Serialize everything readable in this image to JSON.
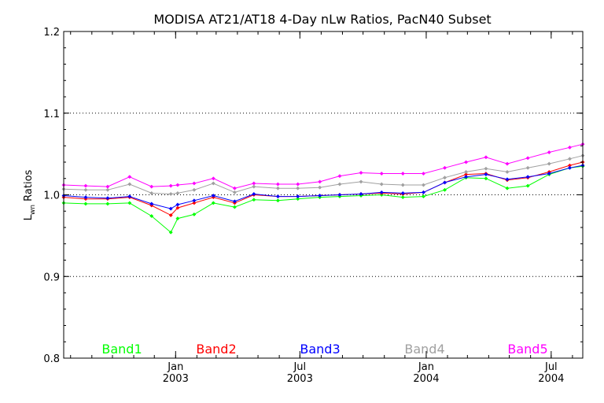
{
  "chart_data": {
    "type": "line",
    "title": "MODISA AT21/AT18 4-Day nLw Ratios, PacN40 Subset",
    "ylabel_main": "L",
    "ylabel_sub": "wn",
    "ylabel_rest": " Ratios",
    "xlabel": "",
    "xlim": [
      "2002-07-22",
      "2004-08-16"
    ],
    "ylim": [
      0.8,
      1.2
    ],
    "yticks": [
      "0.8",
      "0.9",
      "1.0",
      "1.1",
      "1.2"
    ],
    "ytick_values": [
      0.8,
      0.9,
      1.0,
      1.1,
      1.2
    ],
    "ygrid": [
      0.9,
      1.0,
      1.1
    ],
    "xticks": [
      {
        "date": "2003-01-01",
        "month": "Jan",
        "year": "2003"
      },
      {
        "date": "2003-07-01",
        "month": "Jul",
        "year": "2003"
      },
      {
        "date": "2004-01-01",
        "month": "Jan",
        "year": "2004"
      },
      {
        "date": "2004-07-01",
        "month": "Jul",
        "year": "2004"
      }
    ],
    "x": [
      "2002-07-22",
      "2002-08-23",
      "2002-09-24",
      "2002-10-26",
      "2002-11-27",
      "2002-12-25",
      "2003-01-04",
      "2003-01-28",
      "2003-02-25",
      "2003-03-28",
      "2003-04-25",
      "2003-05-30",
      "2003-06-28",
      "2003-07-30",
      "2003-08-28",
      "2003-09-28",
      "2003-10-28",
      "2003-11-28",
      "2003-12-28",
      "2004-01-28",
      "2004-02-28",
      "2004-03-28",
      "2004-04-28",
      "2004-05-28",
      "2004-06-28",
      "2004-07-28",
      "2004-08-16"
    ],
    "series": [
      {
        "name": "Band1",
        "color": "#00ff00",
        "values": [
          0.99,
          0.989,
          0.989,
          0.99,
          0.974,
          0.954,
          0.971,
          0.976,
          0.99,
          0.985,
          0.994,
          0.993,
          0.995,
          0.997,
          0.998,
          0.999,
          1.0,
          0.997,
          0.998,
          1.006,
          1.021,
          1.02,
          1.008,
          1.011,
          1.025,
          1.033,
          1.035
        ]
      },
      {
        "name": "Band2",
        "color": "#ff0000",
        "values": [
          0.997,
          0.995,
          0.995,
          0.997,
          0.987,
          0.975,
          0.984,
          0.99,
          0.997,
          0.99,
          1.0,
          0.998,
          0.998,
          0.999,
          1.0,
          1.001,
          1.002,
          1.001,
          1.003,
          1.015,
          1.025,
          1.026,
          1.018,
          1.021,
          1.028,
          1.036,
          1.04
        ]
      },
      {
        "name": "Band3",
        "color": "#0000ff",
        "values": [
          0.999,
          0.997,
          0.996,
          0.998,
          0.989,
          0.983,
          0.988,
          0.993,
          0.999,
          0.992,
          1.001,
          0.998,
          0.998,
          0.999,
          1.0,
          1.001,
          1.003,
          1.002,
          1.003,
          1.015,
          1.022,
          1.025,
          1.019,
          1.022,
          1.026,
          1.033,
          1.036
        ]
      },
      {
        "name": "Band4",
        "color": "#a0a0a0",
        "values": [
          1.007,
          1.006,
          1.006,
          1.013,
          1.002,
          1.001,
          1.002,
          1.006,
          1.014,
          1.003,
          1.01,
          1.008,
          1.008,
          1.009,
          1.013,
          1.016,
          1.013,
          1.012,
          1.012,
          1.021,
          1.028,
          1.032,
          1.028,
          1.033,
          1.038,
          1.044,
          1.048
        ]
      },
      {
        "name": "Band5",
        "color": "#ff00ff",
        "values": [
          1.012,
          1.011,
          1.01,
          1.022,
          1.01,
          1.011,
          1.012,
          1.014,
          1.02,
          1.008,
          1.014,
          1.013,
          1.013,
          1.016,
          1.023,
          1.027,
          1.026,
          1.026,
          1.026,
          1.033,
          1.04,
          1.046,
          1.038,
          1.045,
          1.052,
          1.058,
          1.062
        ]
      }
    ],
    "legend_position": "bottom",
    "grid": "dotted horizontal at 0.9, 1.0, 1.1"
  }
}
